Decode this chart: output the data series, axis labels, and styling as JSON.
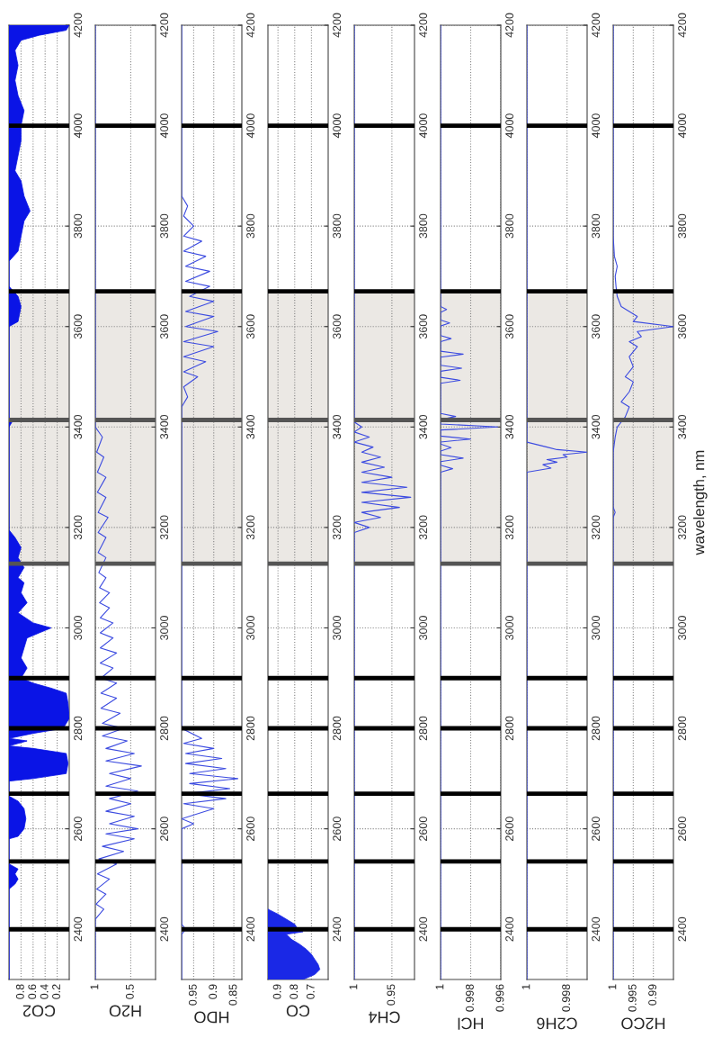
{
  "chart_data": [
    {
      "type": "area",
      "orientation": "horizontal",
      "xlabel": "CO2",
      "color": "#0a14e6",
      "xlim": [
        1,
        0
      ],
      "xticks": [
        0.8,
        0.6,
        0.4,
        0.2
      ],
      "ylim": [
        2300,
        4200
      ],
      "yticks": [
        2400,
        2600,
        2800,
        3000,
        3200,
        3400,
        3600,
        3800,
        4000,
        4200
      ],
      "grid": true,
      "x": [
        2300,
        2480,
        2490,
        2500,
        2510,
        2520,
        2530,
        2580,
        2585,
        2600,
        2620,
        2640,
        2655,
        2665,
        2695,
        2700,
        2710,
        2730,
        2750,
        2760,
        2765,
        2775,
        2780,
        2790,
        2800,
        2820,
        2850,
        2870,
        2880,
        2890,
        2900,
        2920,
        2940,
        2960,
        2980,
        2990,
        3000,
        3010,
        3030,
        3050,
        3070,
        3090,
        3100,
        3120,
        3140,
        3160,
        3180,
        3195,
        3400,
        3410,
        3420,
        3600,
        3610,
        3640,
        3660,
        3680,
        3730,
        3750,
        3780,
        3810,
        3830,
        3860,
        3890,
        3910,
        3940,
        3970,
        4000,
        4030,
        4060,
        4090,
        4120,
        4150,
        4170,
        4180,
        4190,
        4200
      ],
      "values": [
        1,
        1,
        0.9,
        0.85,
        0.9,
        0.85,
        1,
        1,
        0.85,
        0.75,
        0.72,
        0.75,
        0.85,
        1,
        1,
        0.6,
        0.05,
        0.02,
        0.05,
        0.6,
        1,
        0.7,
        1,
        0.6,
        0.1,
        0,
        0.02,
        0.05,
        0.3,
        0.6,
        0.8,
        0.7,
        0.8,
        0.75,
        0.7,
        0.5,
        0.3,
        0.6,
        0.85,
        0.7,
        0.8,
        0.75,
        0.85,
        0.75,
        0.85,
        0.8,
        0.9,
        1,
        1,
        0.95,
        1,
        1,
        0.85,
        0.8,
        0.85,
        1,
        1,
        0.85,
        0.8,
        0.75,
        0.65,
        0.75,
        0.8,
        0.9,
        0.85,
        0.8,
        0.8,
        0.75,
        0.85,
        0.9,
        0.85,
        0.9,
        0.8,
        0.5,
        0.05,
        0
      ],
      "bands": [
        {
          "axis": "y",
          "from": 3128,
          "to": 3670,
          "color": "#ebe8e4"
        }
      ],
      "ref_lines": [
        {
          "axis": "y",
          "value": 2400,
          "color": "#000000"
        },
        {
          "axis": "y",
          "value": 2535,
          "color": "#000000"
        },
        {
          "axis": "y",
          "value": 2670,
          "color": "#000000"
        },
        {
          "axis": "y",
          "value": 2800,
          "color": "#000000"
        },
        {
          "axis": "y",
          "value": 2900,
          "color": "#000000"
        },
        {
          "axis": "y",
          "value": 3128,
          "color": "#555555"
        },
        {
          "axis": "y",
          "value": 3414,
          "color": "#555555"
        },
        {
          "axis": "y",
          "value": 3670,
          "color": "#000000"
        },
        {
          "axis": "y",
          "value": 4000,
          "color": "#000000"
        }
      ]
    },
    {
      "type": "line",
      "orientation": "horizontal",
      "xlabel": "H2O",
      "color": "#3c4be0",
      "xlim": [
        1,
        0.15
      ],
      "xticks": [
        1,
        0.5
      ],
      "ylim": [
        2300,
        4200
      ],
      "yticks": [
        2400,
        2600,
        2800,
        3000,
        3200,
        3400,
        3600,
        3800,
        4000,
        4200
      ],
      "grid": true,
      "x": [
        2300,
        2420,
        2440,
        2450,
        2470,
        2480,
        2500,
        2510,
        2530,
        2540,
        2555,
        2565,
        2580,
        2590,
        2600,
        2610,
        2625,
        2635,
        2650,
        2660,
        2675,
        2685,
        2700,
        2710,
        2725,
        2735,
        2750,
        2760,
        2775,
        2785,
        2800,
        2810,
        2830,
        2840,
        2860,
        2870,
        2890,
        2900,
        2920,
        2930,
        2950,
        2960,
        2980,
        2990,
        3010,
        3020,
        3040,
        3050,
        3070,
        3080,
        3100,
        3110,
        3140,
        3150,
        3180,
        3190,
        3220,
        3230,
        3260,
        3270,
        3300,
        3310,
        3340,
        3350,
        3380,
        3400,
        4200
      ],
      "values": [
        1,
        1,
        0.88,
        0.99,
        0.85,
        0.98,
        0.8,
        0.97,
        0.7,
        0.95,
        0.6,
        0.9,
        0.45,
        0.85,
        0.4,
        0.8,
        0.45,
        0.85,
        0.5,
        0.8,
        0.4,
        0.85,
        0.5,
        0.8,
        0.35,
        0.85,
        0.45,
        0.85,
        0.55,
        0.9,
        0.6,
        0.9,
        0.65,
        0.92,
        0.7,
        0.92,
        0.7,
        0.92,
        0.75,
        0.93,
        0.7,
        0.93,
        0.75,
        0.93,
        0.75,
        0.93,
        0.8,
        0.94,
        0.8,
        0.94,
        0.85,
        0.95,
        0.85,
        0.96,
        0.85,
        0.96,
        0.82,
        0.96,
        0.85,
        0.97,
        0.85,
        0.97,
        0.88,
        0.98,
        0.9,
        1,
        1
      ],
      "bands": [
        {
          "axis": "y",
          "from": 3128,
          "to": 3670,
          "color": "#ebe8e4"
        }
      ],
      "ref_lines": [
        {
          "axis": "y",
          "value": 2400,
          "color": "#000000"
        },
        {
          "axis": "y",
          "value": 2535,
          "color": "#000000"
        },
        {
          "axis": "y",
          "value": 2670,
          "color": "#000000"
        },
        {
          "axis": "y",
          "value": 2800,
          "color": "#000000"
        },
        {
          "axis": "y",
          "value": 2900,
          "color": "#000000"
        },
        {
          "axis": "y",
          "value": 3128,
          "color": "#555555"
        },
        {
          "axis": "y",
          "value": 3414,
          "color": "#555555"
        },
        {
          "axis": "y",
          "value": 3670,
          "color": "#000000"
        },
        {
          "axis": "y",
          "value": 4000,
          "color": "#000000"
        }
      ]
    },
    {
      "type": "line",
      "orientation": "horizontal",
      "xlabel": "HDO",
      "color": "#3c4be0",
      "xlim": [
        0.98,
        0.83
      ],
      "xticks": [
        0.95,
        0.9,
        0.85
      ],
      "ylim": [
        2300,
        4200
      ],
      "yticks": [
        2400,
        2600,
        2800,
        3000,
        3200,
        3400,
        3600,
        3800,
        4000,
        4200
      ],
      "grid": true,
      "x": [
        2300,
        2390,
        2400,
        2410,
        2600,
        2610,
        2620,
        2640,
        2650,
        2660,
        2670,
        2680,
        2690,
        2700,
        2710,
        2720,
        2730,
        2740,
        2750,
        2760,
        2770,
        2780,
        2800,
        3440,
        3460,
        3480,
        3500,
        3510,
        3530,
        3540,
        3560,
        3570,
        3590,
        3600,
        3620,
        3630,
        3650,
        3660,
        3680,
        3690,
        3710,
        3720,
        3740,
        3750,
        3770,
        3780,
        3800,
        3820,
        3840,
        3860,
        4200
      ],
      "values": [
        0.98,
        0.98,
        0.97,
        0.98,
        0.98,
        0.95,
        0.98,
        0.9,
        0.975,
        0.87,
        0.97,
        0.86,
        0.96,
        0.84,
        0.96,
        0.87,
        0.97,
        0.88,
        0.97,
        0.9,
        0.975,
        0.93,
        0.98,
        0.98,
        0.965,
        0.975,
        0.94,
        0.975,
        0.92,
        0.975,
        0.9,
        0.975,
        0.89,
        0.97,
        0.9,
        0.97,
        0.9,
        0.96,
        0.91,
        0.97,
        0.91,
        0.97,
        0.92,
        0.975,
        0.93,
        0.975,
        0.95,
        0.975,
        0.965,
        0.98,
        0.98
      ],
      "bands": [
        {
          "axis": "y",
          "from": 3128,
          "to": 3670,
          "color": "#ebe8e4"
        }
      ],
      "ref_lines": [
        {
          "axis": "y",
          "value": 2400,
          "color": "#000000"
        },
        {
          "axis": "y",
          "value": 2535,
          "color": "#000000"
        },
        {
          "axis": "y",
          "value": 2670,
          "color": "#000000"
        },
        {
          "axis": "y",
          "value": 2800,
          "color": "#000000"
        },
        {
          "axis": "y",
          "value": 2900,
          "color": "#000000"
        },
        {
          "axis": "y",
          "value": 3128,
          "color": "#555555"
        },
        {
          "axis": "y",
          "value": 3414,
          "color": "#555555"
        },
        {
          "axis": "y",
          "value": 3670,
          "color": "#000000"
        },
        {
          "axis": "y",
          "value": 4000,
          "color": "#000000"
        }
      ]
    },
    {
      "type": "area",
      "orientation": "horizontal",
      "xlabel": "CO",
      "color": "#1a28e6",
      "xlim": [
        0.96,
        0.6
      ],
      "xticks": [
        0.9,
        0.8,
        0.7
      ],
      "ylim": [
        2300,
        4200
      ],
      "yticks": [
        2400,
        2600,
        2800,
        3000,
        3200,
        3400,
        3600,
        3800,
        4000,
        4200
      ],
      "grid": true,
      "x": [
        2300,
        2310,
        2320,
        2330,
        2340,
        2350,
        2360,
        2370,
        2380,
        2390,
        2395,
        2400,
        2410,
        2420,
        2430,
        2440
      ],
      "values": [
        0.75,
        0.68,
        0.65,
        0.66,
        0.68,
        0.7,
        0.73,
        0.77,
        0.82,
        0.85,
        0.75,
        0.78,
        0.8,
        0.85,
        0.9,
        0.96
      ],
      "bands": [
        {
          "axis": "y",
          "from": 3128,
          "to": 3670,
          "color": "#ebe8e4"
        }
      ],
      "ref_lines": [
        {
          "axis": "y",
          "value": 2400,
          "color": "#000000"
        },
        {
          "axis": "y",
          "value": 2535,
          "color": "#000000"
        },
        {
          "axis": "y",
          "value": 2670,
          "color": "#000000"
        },
        {
          "axis": "y",
          "value": 2800,
          "color": "#000000"
        },
        {
          "axis": "y",
          "value": 2900,
          "color": "#000000"
        },
        {
          "axis": "y",
          "value": 3128,
          "color": "#555555"
        },
        {
          "axis": "y",
          "value": 3414,
          "color": "#555555"
        },
        {
          "axis": "y",
          "value": 3670,
          "color": "#000000"
        },
        {
          "axis": "y",
          "value": 4000,
          "color": "#000000"
        }
      ]
    },
    {
      "type": "line",
      "orientation": "horizontal",
      "xlabel": "CH4",
      "color": "#3c4be0",
      "xlim": [
        1,
        0.92
      ],
      "xticks": [
        1,
        0.95
      ],
      "ylim": [
        2300,
        4200
      ],
      "yticks": [
        2400,
        2600,
        2800,
        3000,
        3200,
        3400,
        3600,
        3800,
        4000,
        4200
      ],
      "grid": true,
      "x": [
        2300,
        3190,
        3200,
        3210,
        3220,
        3230,
        3240,
        3250,
        3260,
        3270,
        3280,
        3290,
        3300,
        3310,
        3320,
        3330,
        3340,
        3350,
        3360,
        3370,
        3380,
        3390,
        3400,
        3410,
        4200
      ],
      "values": [
        1,
        1,
        0.98,
        1,
        0.965,
        0.99,
        0.94,
        0.99,
        0.925,
        0.99,
        0.93,
        0.99,
        0.95,
        0.99,
        0.96,
        0.99,
        0.965,
        0.99,
        0.975,
        1,
        0.98,
        1,
        0.99,
        1,
        1
      ],
      "bands": [
        {
          "axis": "y",
          "from": 3128,
          "to": 3670,
          "color": "#ebe8e4"
        }
      ],
      "ref_lines": [
        {
          "axis": "y",
          "value": 2400,
          "color": "#000000"
        },
        {
          "axis": "y",
          "value": 2535,
          "color": "#000000"
        },
        {
          "axis": "y",
          "value": 2670,
          "color": "#000000"
        },
        {
          "axis": "y",
          "value": 2800,
          "color": "#000000"
        },
        {
          "axis": "y",
          "value": 2900,
          "color": "#000000"
        },
        {
          "axis": "y",
          "value": 3128,
          "color": "#555555"
        },
        {
          "axis": "y",
          "value": 3414,
          "color": "#555555"
        },
        {
          "axis": "y",
          "value": 3670,
          "color": "#000000"
        },
        {
          "axis": "y",
          "value": 4000,
          "color": "#000000"
        }
      ]
    },
    {
      "type": "line",
      "orientation": "horizontal",
      "xlabel": "HCl",
      "color": "#3c4be0",
      "xlim": [
        1,
        0.996
      ],
      "xticks": [
        1,
        0.998,
        0.996
      ],
      "ylim": [
        2300,
        4200
      ],
      "yticks": [
        2400,
        2600,
        2800,
        3000,
        3200,
        3400,
        3600,
        3800,
        4000,
        4200
      ],
      "grid": true,
      "x": [
        2300,
        3310,
        3317,
        3324,
        3331,
        3338,
        3345,
        3352,
        3359,
        3366,
        3370,
        3376,
        3382,
        3394,
        3400,
        3406,
        3415,
        3421,
        3427,
        3487,
        3493,
        3499,
        3511,
        3517,
        3523,
        3539,
        3545,
        3551,
        3570,
        3576,
        3582,
        3601,
        3607,
        3613,
        3628,
        3634,
        3640,
        4200
      ],
      "values": [
        1,
        1,
        0.9992,
        1,
        1,
        0.9985,
        1,
        1,
        0.9993,
        1,
        1,
        0.998,
        1,
        1,
        0.9962,
        1,
        1,
        0.999,
        1,
        1,
        0.9987,
        1,
        1,
        0.9986,
        1,
        1,
        0.9985,
        1,
        1,
        0.9993,
        1,
        1,
        0.9994,
        1,
        1,
        0.9996,
        1,
        1
      ],
      "bands": [
        {
          "axis": "y",
          "from": 3128,
          "to": 3670,
          "color": "#ebe8e4"
        }
      ],
      "ref_lines": [
        {
          "axis": "y",
          "value": 2400,
          "color": "#000000"
        },
        {
          "axis": "y",
          "value": 2535,
          "color": "#000000"
        },
        {
          "axis": "y",
          "value": 2670,
          "color": "#000000"
        },
        {
          "axis": "y",
          "value": 2800,
          "color": "#000000"
        },
        {
          "axis": "y",
          "value": 2900,
          "color": "#000000"
        },
        {
          "axis": "y",
          "value": 3128,
          "color": "#555555"
        },
        {
          "axis": "y",
          "value": 3414,
          "color": "#555555"
        },
        {
          "axis": "y",
          "value": 3670,
          "color": "#000000"
        },
        {
          "axis": "y",
          "value": 4000,
          "color": "#000000"
        }
      ]
    },
    {
      "type": "line",
      "orientation": "horizontal",
      "xlabel": "C2H6",
      "color": "#3c4be0",
      "xlim": [
        1,
        0.997
      ],
      "xticks": [
        1,
        0.998
      ],
      "ylim": [
        2300,
        4200
      ],
      "yticks": [
        2400,
        2600,
        2800,
        3000,
        3200,
        3400,
        3600,
        3800,
        4000,
        4200
      ],
      "grid": true,
      "x": [
        2300,
        3310,
        3318,
        3325,
        3330,
        3335,
        3340,
        3345,
        3350,
        3355,
        3360,
        3365,
        3370,
        4200
      ],
      "values": [
        1,
        1,
        0.9988,
        0.9992,
        0.9985,
        0.999,
        0.998,
        0.9982,
        0.997,
        0.9985,
        0.999,
        0.9995,
        1,
        1
      ],
      "bands": [
        {
          "axis": "y",
          "from": 3128,
          "to": 3670,
          "color": "#ebe8e4"
        }
      ],
      "ref_lines": [
        {
          "axis": "y",
          "value": 2400,
          "color": "#000000"
        },
        {
          "axis": "y",
          "value": 2535,
          "color": "#000000"
        },
        {
          "axis": "y",
          "value": 2670,
          "color": "#000000"
        },
        {
          "axis": "y",
          "value": 2800,
          "color": "#000000"
        },
        {
          "axis": "y",
          "value": 2900,
          "color": "#000000"
        },
        {
          "axis": "y",
          "value": 3128,
          "color": "#555555"
        },
        {
          "axis": "y",
          "value": 3414,
          "color": "#555555"
        },
        {
          "axis": "y",
          "value": 3670,
          "color": "#000000"
        },
        {
          "axis": "y",
          "value": 4000,
          "color": "#000000"
        }
      ]
    },
    {
      "type": "line",
      "orientation": "horizontal",
      "xlabel": "H2CO",
      "ylabel": "wavelength, nm",
      "color": "#3c4be0",
      "xlim": [
        1,
        0.985
      ],
      "xticks": [
        1,
        0.995,
        0.99
      ],
      "ylim": [
        2300,
        4200
      ],
      "yticks": [
        2400,
        2600,
        2800,
        3000,
        3200,
        3400,
        3600,
        3800,
        4000,
        4200
      ],
      "grid": true,
      "x": [
        2300,
        3220,
        3230,
        3240,
        3350,
        3380,
        3400,
        3420,
        3440,
        3450,
        3470,
        3490,
        3500,
        3520,
        3540,
        3560,
        3570,
        3580,
        3590,
        3600,
        3610,
        3620,
        3630,
        3640,
        3660,
        3680,
        3700,
        3720,
        3740,
        3780,
        4200
      ],
      "values": [
        1,
        1,
        0.9995,
        1,
        1,
        0.9995,
        0.999,
        0.997,
        0.996,
        0.998,
        0.996,
        0.995,
        0.997,
        0.995,
        0.996,
        0.994,
        0.996,
        0.993,
        0.994,
        0.985,
        0.995,
        0.994,
        0.996,
        0.998,
        0.999,
        0.9993,
        0.9995,
        0.999,
        0.9997,
        1,
        1
      ],
      "bands": [
        {
          "axis": "y",
          "from": 3128,
          "to": 3670,
          "color": "#ebe8e4"
        }
      ],
      "ref_lines": [
        {
          "axis": "y",
          "value": 2400,
          "color": "#000000"
        },
        {
          "axis": "y",
          "value": 2535,
          "color": "#000000"
        },
        {
          "axis": "y",
          "value": 2670,
          "color": "#000000"
        },
        {
          "axis": "y",
          "value": 2800,
          "color": "#000000"
        },
        {
          "axis": "y",
          "value": 2900,
          "color": "#000000"
        },
        {
          "axis": "y",
          "value": 3128,
          "color": "#555555"
        },
        {
          "axis": "y",
          "value": 3414,
          "color": "#555555"
        },
        {
          "axis": "y",
          "value": 3670,
          "color": "#000000"
        },
        {
          "axis": "y",
          "value": 4000,
          "color": "#000000"
        }
      ]
    }
  ]
}
